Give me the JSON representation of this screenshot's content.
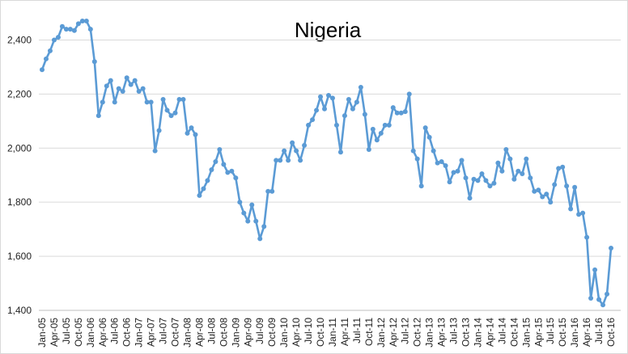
{
  "chart_data": {
    "type": "line",
    "title": "Nigeria",
    "xlabel": "",
    "ylabel": "",
    "ylim": [
      1400,
      2500
    ],
    "yticks": [
      1400,
      1600,
      1800,
      2000,
      2200,
      2400
    ],
    "ytick_labels": [
      "1,400",
      "1,600",
      "1,800",
      "2,000",
      "2,200",
      "2,400"
    ],
    "grid": "horizontal",
    "legend": "none",
    "line_color": "#5b9bd5",
    "x_tick_labels": [
      "Jan-05",
      "Apr-05",
      "Jul-05",
      "Oct-05",
      "Jan-06",
      "Apr-06",
      "Jul-06",
      "Oct-06",
      "Jan-07",
      "Apr-07",
      "Jul-07",
      "Oct-07",
      "Jan-08",
      "Apr-08",
      "Jul-08",
      "Oct-08",
      "Jan-09",
      "Apr-09",
      "Jul-09",
      "Oct-09",
      "Jan-10",
      "Apr-10",
      "Jul-10",
      "Oct-10",
      "Jan-11",
      "Apr-11",
      "Jul-11",
      "Oct-11",
      "Jan-12",
      "Apr-12",
      "Jul-12",
      "Oct-12",
      "Jan-13",
      "Apr-13",
      "Jul-13",
      "Oct-13",
      "Jan-14",
      "Apr-14",
      "Jul-14",
      "Oct-14",
      "Jan-15",
      "Apr-15",
      "Jul-15",
      "Oct-15",
      "Jan-16",
      "Apr-16",
      "Jul-16",
      "Oct-16"
    ],
    "series": [
      {
        "values": [
          2290,
          2330,
          2360,
          2400,
          2410,
          2450,
          2440,
          2440,
          2435,
          2460,
          2470,
          2470,
          2440,
          2320,
          2120,
          2170,
          2230,
          2250,
          2170,
          2220,
          2210,
          2260,
          2235,
          2250,
          2210,
          2220,
          2170,
          2170,
          1990,
          2065,
          2180,
          2140,
          2120,
          2130,
          2180,
          2180,
          2055,
          2075,
          2050,
          1825,
          1850,
          1880,
          1920,
          1950,
          1995,
          1940,
          1910,
          1915,
          1890,
          1800,
          1760,
          1730,
          1790,
          1730,
          1665,
          1710,
          1840,
          1840,
          1955,
          1955,
          1990,
          1955,
          2020,
          1990,
          1955,
          2010,
          2085,
          2105,
          2140,
          2190,
          2145,
          2195,
          2185,
          2085,
          1985,
          2120,
          2180,
          2145,
          2170,
          2225,
          2125,
          1995,
          2070,
          2030,
          2055,
          2085,
          2085,
          2150,
          2130,
          2130,
          2135,
          2200,
          1990,
          1960,
          1860,
          2075,
          2040,
          1990,
          1945,
          1950,
          1935,
          1875,
          1910,
          1915,
          1955,
          1890,
          1815,
          1885,
          1880,
          1905,
          1880,
          1860,
          1870,
          1945,
          1915,
          1995,
          1960,
          1885,
          1915,
          1905,
          1960,
          1890,
          1840,
          1845,
          1820,
          1830,
          1800,
          1865,
          1925,
          1930,
          1860,
          1775,
          1855,
          1755,
          1760,
          1670,
          1445,
          1550,
          1440,
          1420,
          1460,
          1630
        ]
      }
    ]
  }
}
